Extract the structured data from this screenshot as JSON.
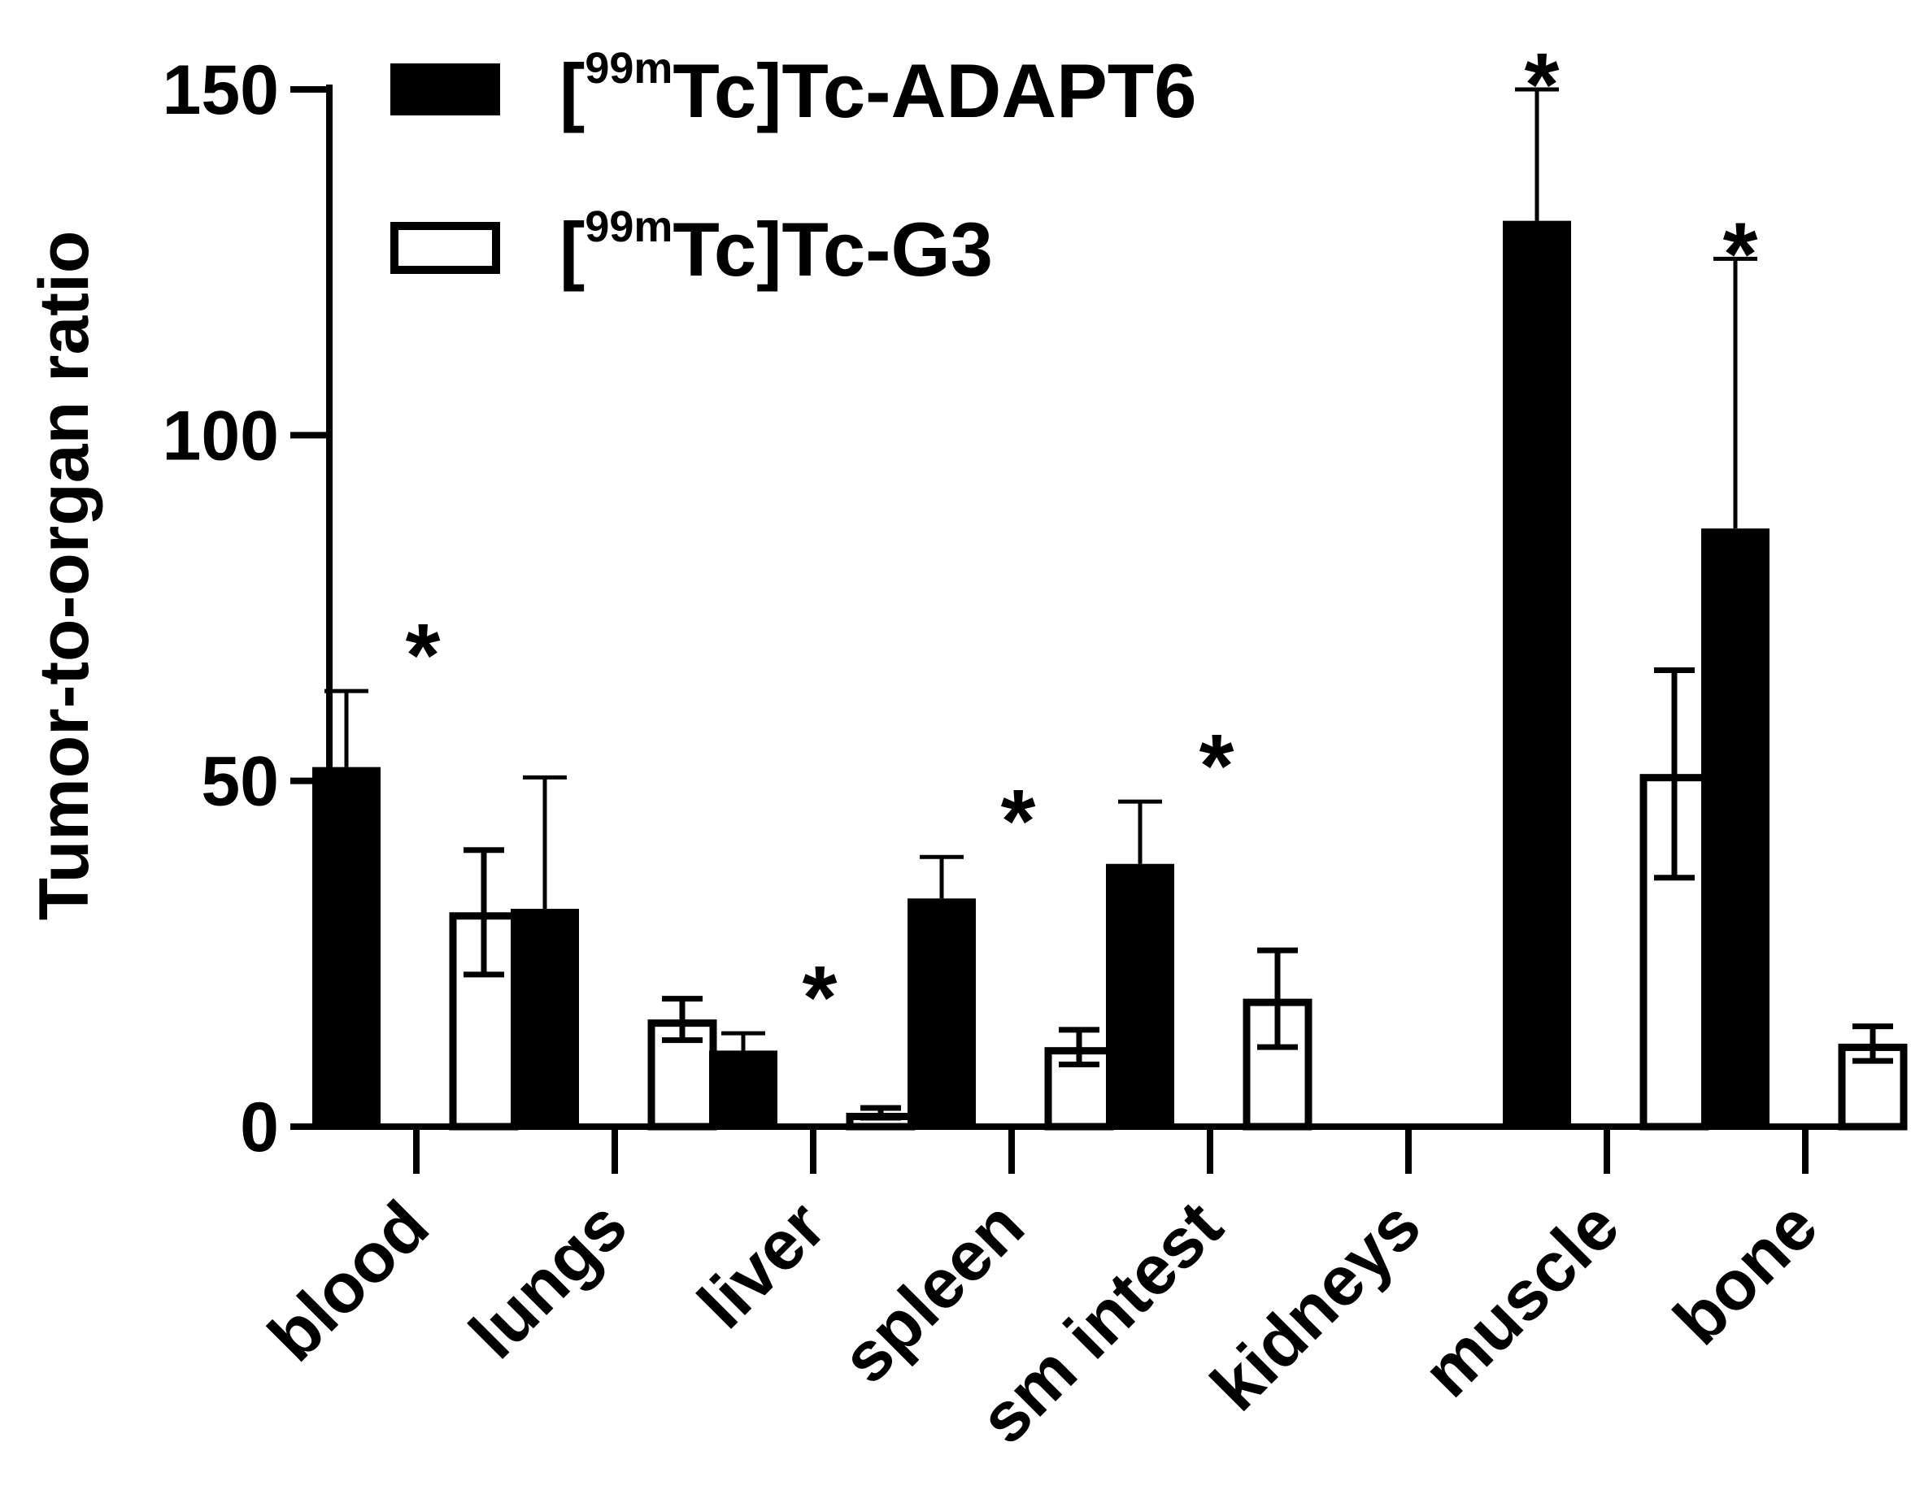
{
  "chart_data": {
    "type": "bar",
    "title": "",
    "ylabel": "Tumor-to-organ ratio",
    "xlabel": "",
    "ylim": [
      0,
      150
    ],
    "yticks": [
      0,
      50,
      100,
      150
    ],
    "grid": false,
    "legend_position": "top-left",
    "categories": [
      "blood",
      "lungs",
      "liver",
      "spleen",
      "sm intest",
      "kidneys",
      "muscle",
      "bone"
    ],
    "series": [
      {
        "name": "ADAPT6",
        "legend_parts": {
          "open": "[",
          "sup": "99m",
          "rest": "Tc]Tc-ADAPT6"
        },
        "fill": "#000000",
        "values": [
          52,
          31.5,
          11,
          33,
          38,
          0,
          131,
          86.5
        ],
        "errors": [
          11,
          19,
          2.5,
          6,
          9,
          0,
          19,
          39
        ]
      },
      {
        "name": "G3",
        "legend_parts": {
          "open": "[",
          "sup": "99m",
          "rest": "Tc]Tc-G3"
        },
        "fill": "#ffffff",
        "values": [
          31,
          15.5,
          2,
          11.5,
          18.5,
          0,
          51,
          12
        ],
        "errors": [
          9,
          3,
          0.7,
          2.5,
          7,
          0,
          15,
          2.5
        ]
      }
    ],
    "significance": [
      "*",
      "",
      "*",
      "*",
      "*",
      "",
      "*",
      "*"
    ]
  },
  "colors": {
    "axis": "#000000",
    "bar_dark": "#000000",
    "bar_light": "#ffffff"
  }
}
